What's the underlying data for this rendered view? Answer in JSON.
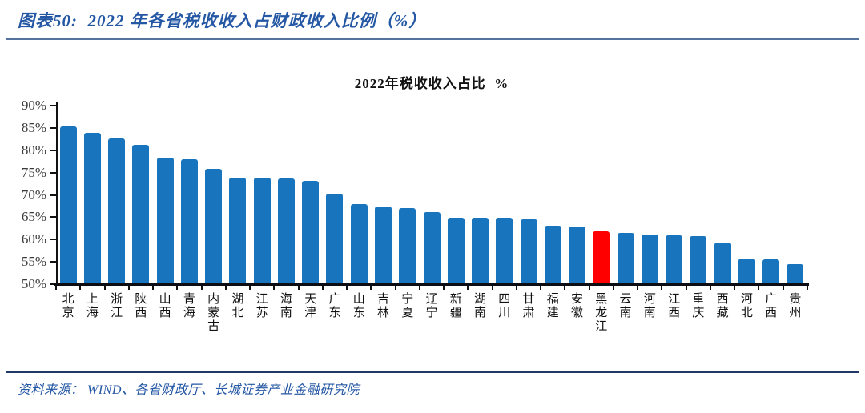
{
  "header": {
    "title": "图表50:  2022 年各省税收收入占财政收入比例（%）"
  },
  "chart_data": {
    "type": "bar",
    "title": "2022年税收收入占比  %",
    "categories": [
      "北京",
      "上海",
      "浙江",
      "陕西",
      "山西",
      "青海",
      "内蒙古",
      "湖北",
      "江苏",
      "海南",
      "天津",
      "广东",
      "山东",
      "吉林",
      "宁夏",
      "辽宁",
      "新疆",
      "湖南",
      "四川",
      "甘肃",
      "福建",
      "安徽",
      "黑龙江",
      "云南",
      "河南",
      "江西",
      "重庆",
      "西藏",
      "河北",
      "广西",
      "贵州"
    ],
    "values": [
      85.4,
      83.9,
      82.7,
      81.2,
      78.4,
      78.0,
      75.8,
      73.9,
      73.8,
      73.6,
      73.2,
      70.3,
      67.9,
      67.4,
      67.0,
      66.2,
      64.9,
      64.8,
      64.8,
      64.5,
      63.1,
      62.9,
      61.8,
      61.5,
      61.1,
      61.0,
      60.7,
      59.4,
      55.7,
      55.5,
      54.4
    ],
    "bar_color": "#1874BC",
    "highlight": {
      "category": "黑龙江",
      "color": "#FF0000"
    },
    "ylim": [
      50,
      90
    ],
    "yticks": [
      50,
      55,
      60,
      65,
      70,
      75,
      80,
      85,
      90
    ],
    "ytick_suffix": "%",
    "xlabel": "",
    "ylabel": "",
    "grid": false,
    "legend": false
  },
  "footer": {
    "source": "资料来源： WIND、各省财政厅、长城证券产业金融研究院"
  }
}
